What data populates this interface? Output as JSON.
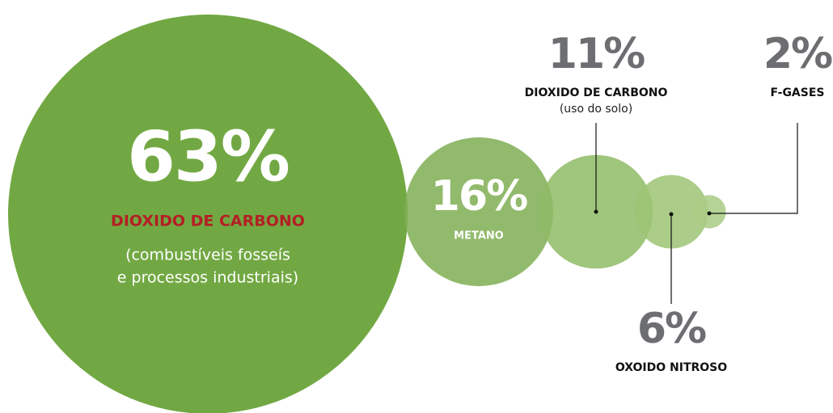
{
  "chart_data": {
    "type": "bubble",
    "categories": [
      "DIOXIDO DE CARBONO",
      "METANO",
      "DIOXIDO DE CARBONO",
      "OXOIDO NITROSO",
      "F-GASES"
    ],
    "details": [
      [
        "(combustíveis fosseís",
        "e processos industriais)"
      ],
      null,
      [
        "(uso do solo)"
      ],
      null,
      null
    ],
    "values": [
      63,
      16,
      11,
      6,
      2
    ],
    "value_labels": [
      "63%",
      "16%",
      "11%",
      "6%",
      "2%"
    ],
    "colors": [
      "#72a843",
      "#7fae52",
      "#8fbb65",
      "#9cc474",
      "#a9cb84"
    ]
  }
}
